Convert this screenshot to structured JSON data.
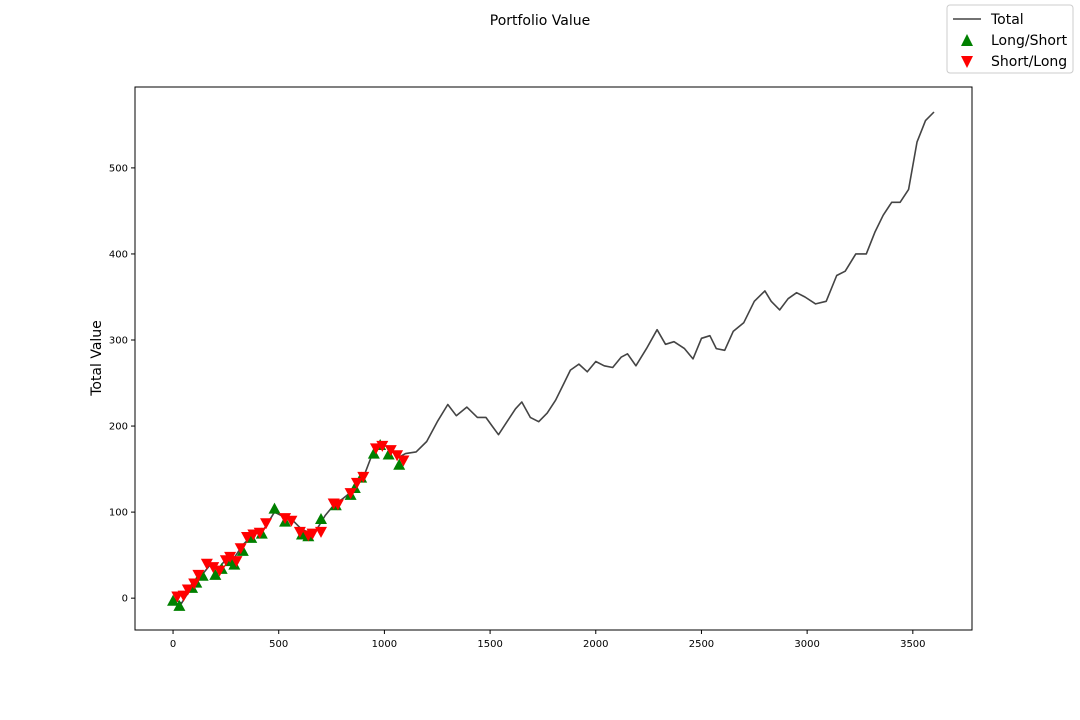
{
  "chart_data": {
    "type": "line",
    "title": "Portfolio Value",
    "xlabel": "",
    "ylabel": "Total Value",
    "xlim": [
      -180,
      3780
    ],
    "ylim": [
      -37,
      594
    ],
    "xticks": [
      0,
      500,
      1000,
      1500,
      2000,
      2500,
      3000,
      3500
    ],
    "yticks": [
      0,
      100,
      200,
      300,
      400,
      500
    ],
    "grid": false,
    "legend_position": "top-right",
    "colors": {
      "total": "#444444",
      "long_short": "#008000",
      "short_long": "#ff0000"
    },
    "series": [
      {
        "name": "Total",
        "kind": "line",
        "x": [
          0,
          40,
          80,
          130,
          180,
          210,
          250,
          290,
          330,
          380,
          430,
          480,
          520,
          560,
          600,
          640,
          680,
          720,
          760,
          800,
          850,
          900,
          950,
          990,
          1030,
          1070,
          1100,
          1150,
          1200,
          1250,
          1300,
          1340,
          1390,
          1440,
          1480,
          1510,
          1540,
          1580,
          1620,
          1650,
          1690,
          1730,
          1770,
          1810,
          1850,
          1880,
          1920,
          1960,
          2000,
          2040,
          2080,
          2120,
          2150,
          2190,
          2240,
          2290,
          2330,
          2370,
          2420,
          2460,
          2500,
          2540,
          2570,
          2610,
          2650,
          2700,
          2750,
          2800,
          2830,
          2870,
          2910,
          2950,
          2990,
          3040,
          3090,
          3140,
          3180,
          3230,
          3280,
          3320,
          3360,
          3400,
          3440,
          3480,
          3520,
          3560,
          3600
        ],
        "y": [
          0,
          -6,
          10,
          25,
          40,
          33,
          45,
          47,
          62,
          74,
          80,
          100,
          95,
          92,
          82,
          76,
          80,
          96,
          108,
          115,
          125,
          140,
          172,
          180,
          172,
          164,
          168,
          170,
          182,
          205,
          225,
          212,
          222,
          210,
          210,
          200,
          190,
          205,
          220,
          228,
          210,
          205,
          215,
          230,
          250,
          265,
          272,
          263,
          275,
          270,
          268,
          280,
          284,
          270,
          290,
          312,
          295,
          298,
          290,
          278,
          302,
          305,
          290,
          288,
          310,
          320,
          345,
          357,
          345,
          335,
          348,
          355,
          350,
          342,
          345,
          375,
          380,
          400,
          400,
          425,
          445,
          460,
          460,
          475,
          530,
          555,
          565
        ]
      },
      {
        "name": "Long/Short",
        "kind": "markers",
        "x": [
          0,
          30,
          90,
          110,
          140,
          200,
          230,
          270,
          290,
          330,
          370,
          420,
          480,
          530,
          610,
          640,
          700,
          770,
          840,
          860,
          890,
          950,
          980,
          1020,
          1070
        ],
        "y": [
          -3,
          -9,
          12,
          18,
          26,
          27,
          34,
          43,
          39,
          55,
          70,
          75,
          104,
          89,
          74,
          72,
          92,
          108,
          120,
          128,
          140,
          168,
          178,
          167,
          155
        ]
      },
      {
        "name": "Short/Long",
        "kind": "markers",
        "x": [
          20,
          50,
          70,
          100,
          120,
          160,
          190,
          220,
          250,
          270,
          300,
          320,
          350,
          380,
          410,
          440,
          530,
          560,
          600,
          640,
          660,
          700,
          760,
          780,
          840,
          870,
          900,
          960,
          990,
          1030,
          1060,
          1090
        ],
        "y": [
          2,
          3,
          10,
          17,
          27,
          40,
          36,
          32,
          44,
          48,
          43,
          58,
          71,
          74,
          76,
          87,
          93,
          90,
          77,
          73,
          75,
          77,
          110,
          109,
          122,
          134,
          141,
          174,
          177,
          172,
          166,
          160
        ]
      }
    ]
  }
}
